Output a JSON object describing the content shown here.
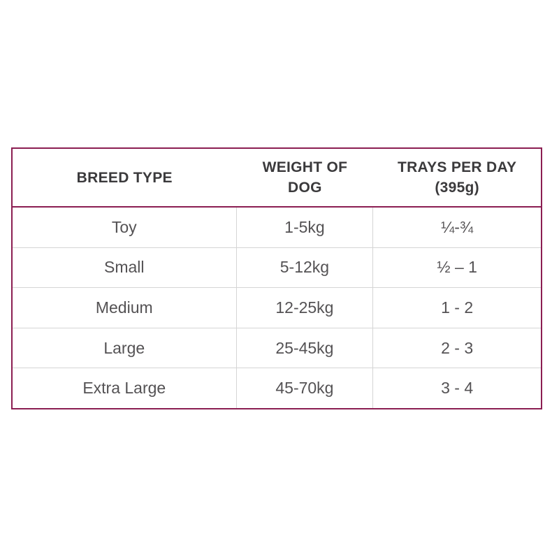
{
  "table": {
    "headers": {
      "breed": "BREED TYPE",
      "weight": "WEIGHT OF DOG",
      "trays": "TRAYS PER DAY (395g)"
    },
    "rows": [
      {
        "breed": "Toy",
        "weight": "1-5kg",
        "trays": "¼-¾"
      },
      {
        "breed": "Small",
        "weight": "5-12kg",
        "trays": "½ – 1"
      },
      {
        "breed": "Medium",
        "weight": "12-25kg",
        "trays": "1 - 2"
      },
      {
        "breed": "Large",
        "weight": "25-45kg",
        "trays": "2 - 3"
      },
      {
        "breed": "Extra Large",
        "weight": "45-70kg",
        "trays": "3 - 4"
      }
    ]
  },
  "colors": {
    "outer_border": "#8b1e52",
    "grid_line": "#d5d5d5",
    "header_text": "#3b3a3c",
    "body_text": "#545254"
  }
}
